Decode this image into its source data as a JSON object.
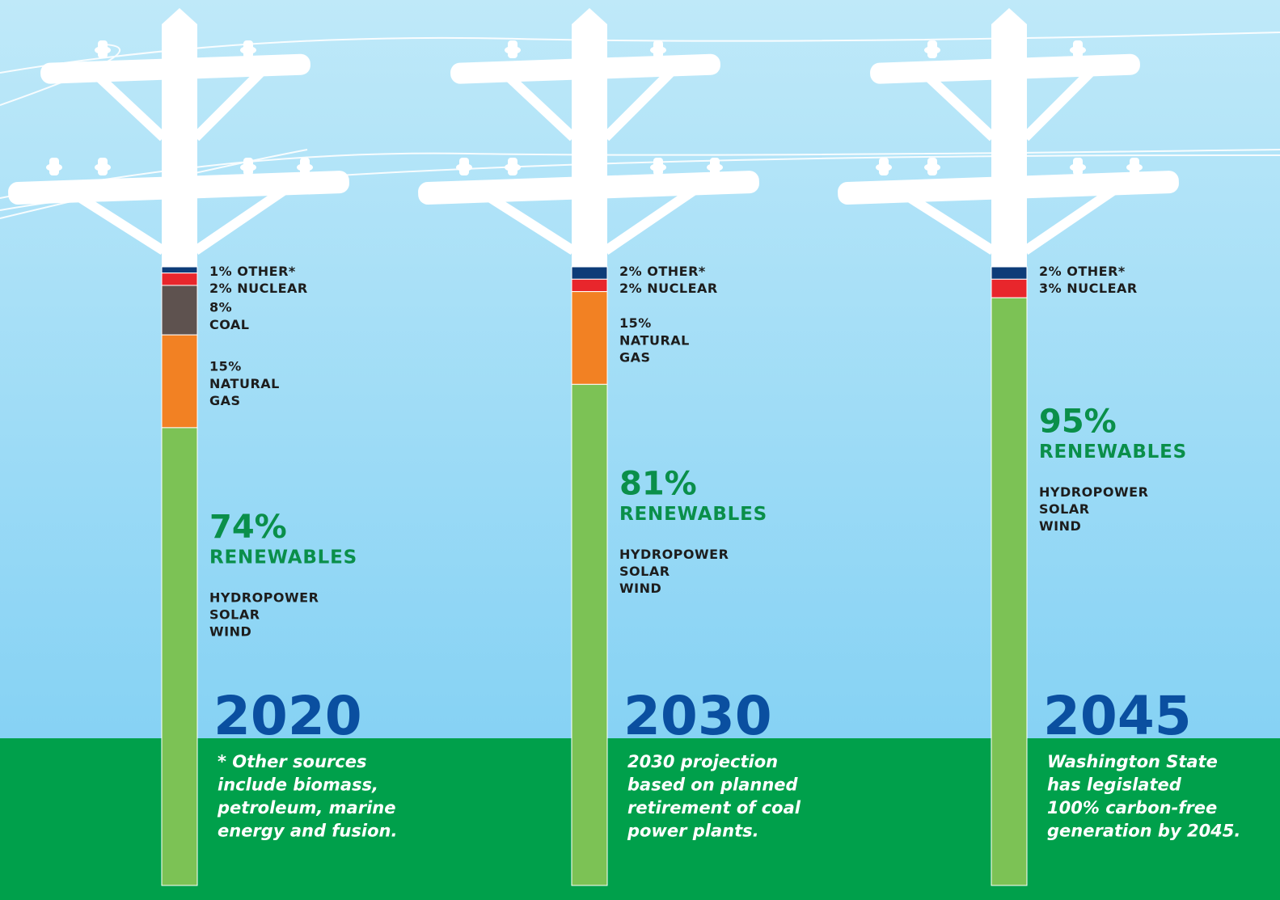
{
  "chart_data": [
    {
      "type": "stacked-bar",
      "title": "2020",
      "ylim": [
        0,
        100
      ],
      "series": [
        {
          "name": "OTHER*",
          "color": "#0d3c78",
          "values": [
            1
          ],
          "value_labels": [
            "1%"
          ]
        },
        {
          "name": "NUCLEAR",
          "color": "#e8262c",
          "values": [
            2
          ],
          "value_labels": [
            "2%"
          ]
        },
        {
          "name": "COAL",
          "color": "#5e524f",
          "values": [
            8
          ],
          "value_labels": [
            "8%"
          ]
        },
        {
          "name": "NATURAL GAS",
          "color": "#f28123",
          "values": [
            15
          ],
          "value_labels": [
            "15%"
          ]
        },
        {
          "name": "RENEWABLES",
          "color": "#7cc255",
          "values": [
            74
          ],
          "value_labels": [
            "74%"
          ],
          "sources": [
            "HYDROPOWER",
            "SOLAR",
            "WIND"
          ]
        }
      ],
      "note": [
        "* Other sources",
        "include biomass,",
        "petroleum, marine",
        "energy and fusion."
      ]
    },
    {
      "type": "stacked-bar",
      "title": "2030",
      "ylim": [
        0,
        100
      ],
      "series": [
        {
          "name": "OTHER*",
          "color": "#0d3c78",
          "values": [
            2
          ],
          "value_labels": [
            "2%"
          ]
        },
        {
          "name": "NUCLEAR",
          "color": "#e8262c",
          "values": [
            2
          ],
          "value_labels": [
            "2%"
          ]
        },
        {
          "name": "NATURAL GAS",
          "color": "#f28123",
          "values": [
            15
          ],
          "value_labels": [
            "15%"
          ]
        },
        {
          "name": "RENEWABLES",
          "color": "#7cc255",
          "values": [
            81
          ],
          "value_labels": [
            "81%"
          ],
          "sources": [
            "HYDROPOWER",
            "SOLAR",
            "WIND"
          ]
        }
      ],
      "note": [
        "2030 projection",
        "based on planned",
        "retirement of coal",
        "power plants."
      ]
    },
    {
      "type": "stacked-bar",
      "title": "2045",
      "ylim": [
        0,
        100
      ],
      "series": [
        {
          "name": "OTHER*",
          "color": "#0d3c78",
          "values": [
            2
          ],
          "value_labels": [
            "2%"
          ]
        },
        {
          "name": "NUCLEAR",
          "color": "#e8262c",
          "values": [
            3
          ],
          "value_labels": [
            "3%"
          ]
        },
        {
          "name": "RENEWABLES",
          "color": "#7cc255",
          "values": [
            95
          ],
          "value_labels": [
            "95%"
          ],
          "sources": [
            "HYDROPOWER",
            "SOLAR",
            "WIND"
          ]
        }
      ],
      "note": [
        "Washington State",
        "has legislated",
        "100% carbon-free",
        "generation by 2045."
      ]
    }
  ]
}
